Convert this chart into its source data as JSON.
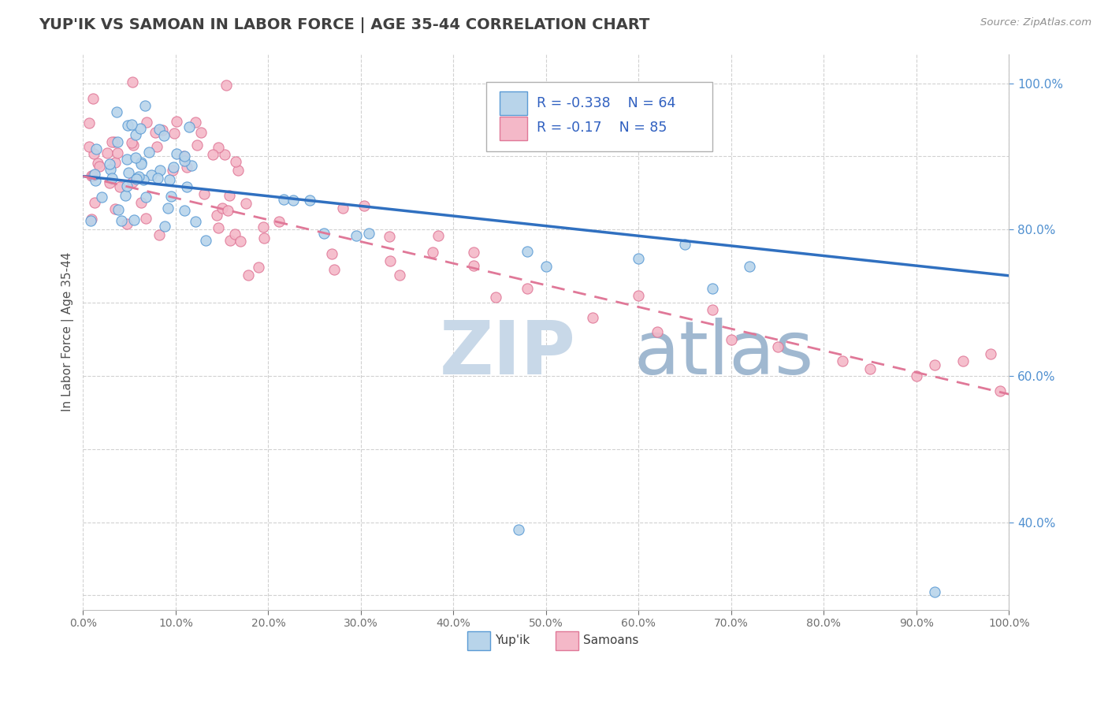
{
  "title": "YUP'IK VS SAMOAN IN LABOR FORCE | AGE 35-44 CORRELATION CHART",
  "source_text": "Source: ZipAtlas.com",
  "ylabel": "In Labor Force | Age 35-44",
  "legend_label1": "Yup'ik",
  "legend_label2": "Samoans",
  "r1": -0.338,
  "n1": 64,
  "r2": -0.17,
  "n2": 85,
  "xlim": [
    0.0,
    1.0
  ],
  "ylim": [
    0.28,
    1.04
  ],
  "xticks": [
    0.0,
    0.1,
    0.2,
    0.3,
    0.4,
    0.5,
    0.6,
    0.7,
    0.8,
    0.9,
    1.0
  ],
  "yticks": [
    0.4,
    0.6,
    0.8,
    1.0
  ],
  "ytick_labels_right": [
    "40.0%",
    "60.0%",
    "80.0%",
    "100.0%"
  ],
  "xtick_labels": [
    "0.0%",
    "10.0%",
    "20.0%",
    "30.0%",
    "40.0%",
    "50.0%",
    "60.0%",
    "70.0%",
    "80.0%",
    "90.0%",
    "100.0%"
  ],
  "color_blue_fill": "#b8d4ea",
  "color_blue_edge": "#5b9bd5",
  "color_pink_fill": "#f4b8c8",
  "color_pink_edge": "#e07898",
  "color_blue_line": "#3070c0",
  "color_pink_line": "#e07898",
  "color_title": "#404040",
  "color_source": "#909090",
  "color_legend_text": "#3060c0",
  "color_raxis": "#5090d0",
  "watermark_zip": "#c8d8e8",
  "watermark_atlas": "#a0b8d0",
  "blue_trend_start": 0.873,
  "blue_trend_end": 0.737,
  "pink_trend_start": 0.873,
  "pink_trend_end": 0.575
}
